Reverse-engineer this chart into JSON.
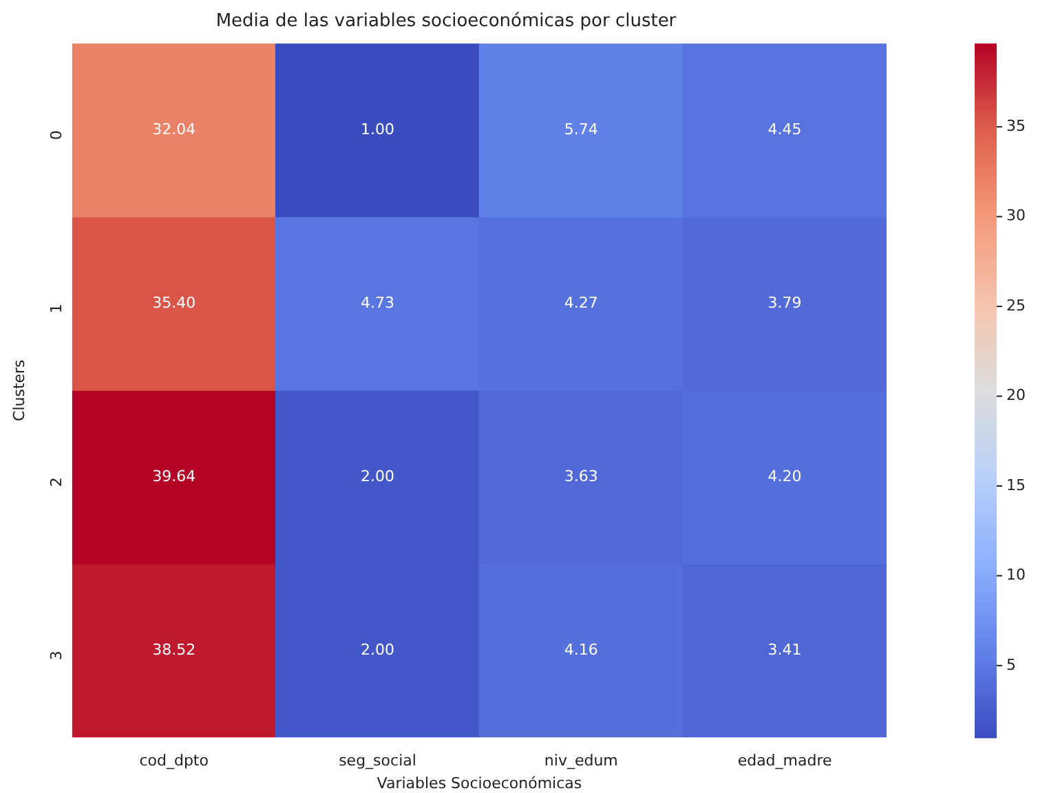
{
  "chart_data": {
    "type": "heatmap",
    "title": "Media de las variables socioeconómicas por cluster",
    "xlabel": "Variables Socioeconómicas",
    "ylabel": "Clusters",
    "categories": [
      "cod_dpto",
      "seg_social",
      "niv_edum",
      "edad_madre"
    ],
    "y_categories": [
      "0",
      "1",
      "2",
      "3"
    ],
    "cells": [
      [
        32.04,
        1.0,
        5.74,
        4.45
      ],
      [
        35.4,
        4.73,
        4.27,
        3.79
      ],
      [
        39.64,
        2.0,
        3.63,
        4.2
      ],
      [
        38.52,
        2.0,
        4.16,
        3.41
      ]
    ],
    "cell_labels": [
      [
        "32.04",
        "1.00",
        "5.74",
        "4.45"
      ],
      [
        "35.40",
        "4.73",
        "4.27",
        "3.79"
      ],
      [
        "39.64",
        "2.00",
        "3.63",
        "4.20"
      ],
      [
        "38.52",
        "2.00",
        "4.16",
        "3.41"
      ]
    ],
    "clim": [
      1.0,
      39.64
    ],
    "cticks": [
      5,
      10,
      15,
      20,
      25,
      30,
      35
    ]
  }
}
